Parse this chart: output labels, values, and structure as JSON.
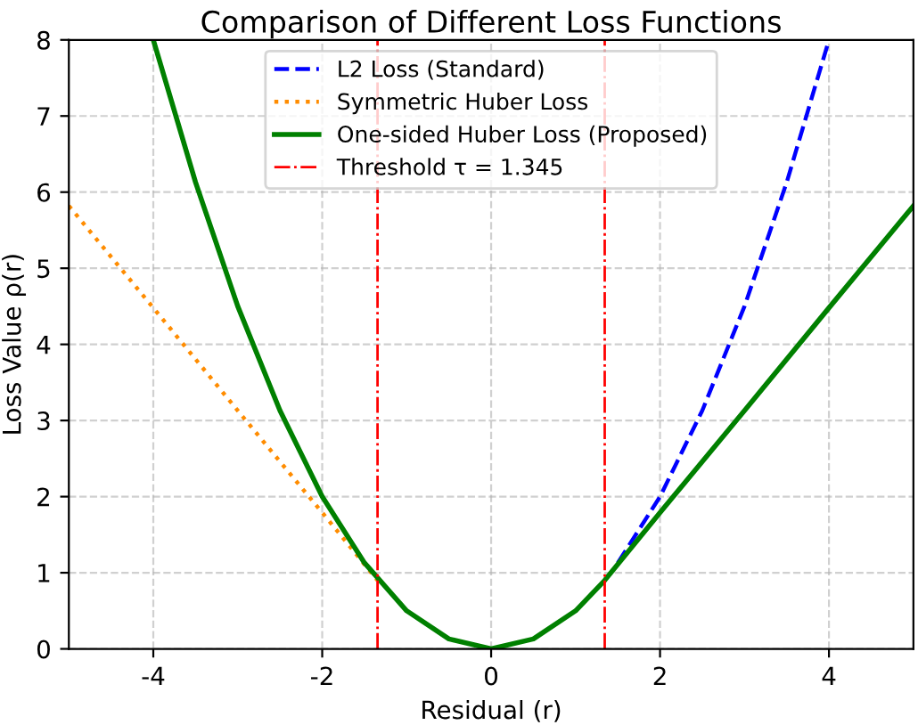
{
  "chart_data": {
    "type": "line",
    "title": "Comparison of Different Loss Functions",
    "xlabel": "Residual (r)",
    "ylabel": "Loss Value ρ(r)",
    "xlim": [
      -5,
      5
    ],
    "ylim": [
      0,
      8
    ],
    "xticks": [
      -4,
      -2,
      0,
      2,
      4
    ],
    "yticks": [
      0,
      1,
      2,
      3,
      4,
      5,
      6,
      7,
      8
    ],
    "grid": true,
    "legend": "top center",
    "marker": "none",
    "series": [
      {
        "name": "L2 Loss (Standard)",
        "color": "#0000ff",
        "line_style": "dashed",
        "x": [
          1.5,
          2,
          2.5,
          3,
          3.5,
          4
        ],
        "values": [
          1.13,
          2.0,
          3.13,
          4.5,
          6.13,
          8.0
        ]
      },
      {
        "name": "Symmetric Huber Loss",
        "color": "#ff8c00",
        "line_style": "dotted",
        "x": [
          -5,
          -4,
          -3,
          -2,
          -1.345
        ],
        "values": [
          5.82,
          4.48,
          3.13,
          1.79,
          0.9
        ]
      },
      {
        "name": "One-sided Huber Loss (Proposed)",
        "color": "#008000",
        "line_style": "solid",
        "x": [
          -4,
          -3.5,
          -3,
          -2.5,
          -2,
          -1.5,
          -1,
          -0.5,
          0,
          0.5,
          1,
          1.345,
          2,
          3,
          4,
          5
        ],
        "values": [
          8.0,
          6.13,
          4.5,
          3.13,
          2.0,
          1.13,
          0.5,
          0.13,
          0,
          0.13,
          0.5,
          0.9,
          1.79,
          3.13,
          4.48,
          5.82
        ]
      }
    ],
    "ref_lines": [
      {
        "axis": "x",
        "value": -1.345,
        "color": "#ff0000",
        "line_style": "dashdot"
      },
      {
        "axis": "x",
        "value": 1.345,
        "label": "Threshold τ = 1.345",
        "color": "#ff0000",
        "line_style": "dashdot"
      }
    ]
  }
}
